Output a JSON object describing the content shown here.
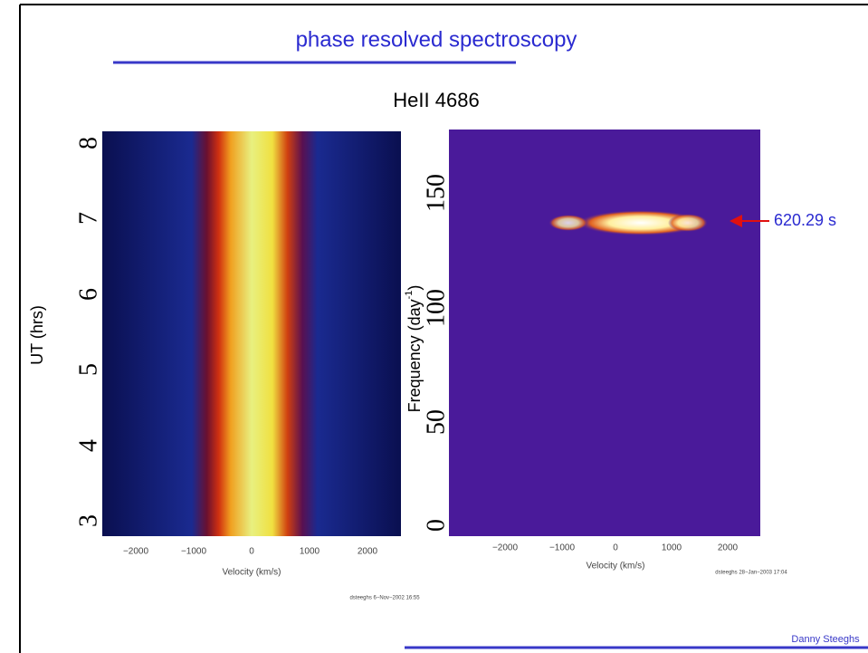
{
  "title": "phase resolved spectroscopy",
  "subtitle": "HeII 4686",
  "left_panel": {
    "ylabel": "UT (hrs)",
    "yticks": [
      "3",
      "4",
      "5",
      "6",
      "7",
      "8"
    ],
    "xticks": [
      "−2000",
      "−1000",
      "0",
      "1000",
      "2000"
    ],
    "xlabel": "Velocity (km/s)",
    "credit": "dsteeghs  6−Nov−2002 16:55"
  },
  "right_panel": {
    "ylabel": [
      "Frequency (day",
      "-1",
      ")"
    ],
    "yticks": [
      "0",
      "50",
      "100",
      "150"
    ],
    "xticks": [
      "−2000",
      "−1000",
      "0",
      "1000",
      "2000"
    ],
    "xlabel": "Velocity (km/s)",
    "credit": "dsteeghs 28−Jan−2003 17:04",
    "annotation": "620.29 s"
  },
  "footer": "Danny Steeghs"
}
